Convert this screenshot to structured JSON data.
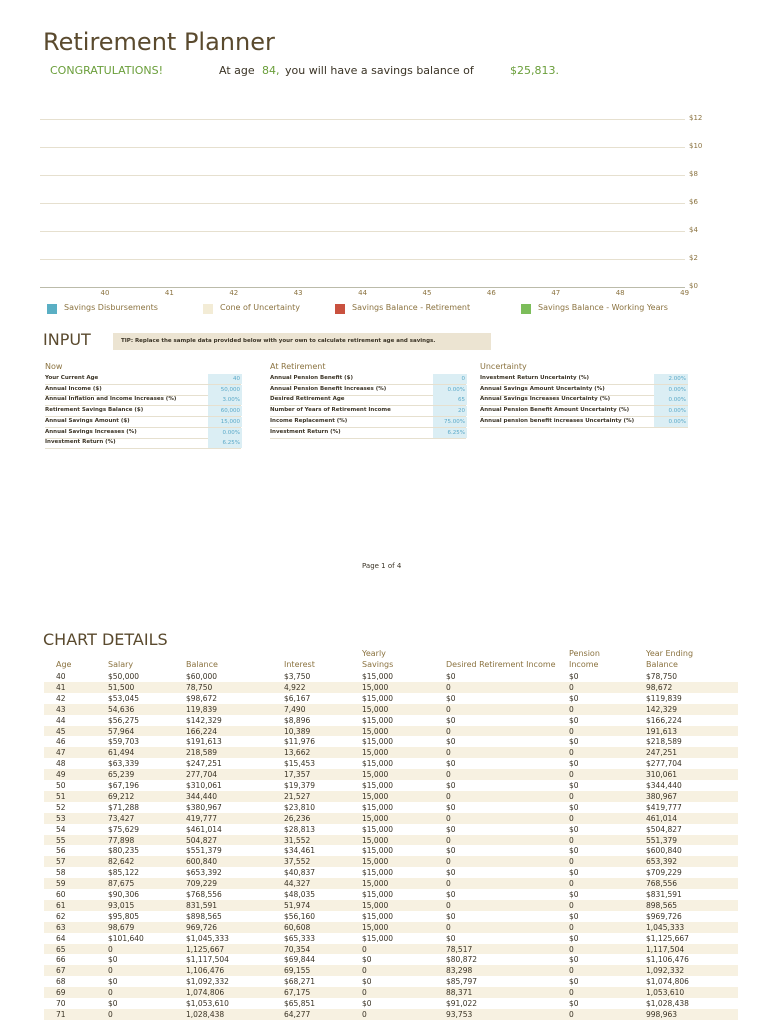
{
  "header": {
    "title": "Retirement Planner"
  },
  "summary": {
    "congrats": "CONGRATULATIONS!",
    "prefix": "At age",
    "age": "84,",
    "middle": "you will have a savings balance of",
    "balance": "$25,813."
  },
  "chart": {
    "yticks": [
      "$12",
      "$10",
      "$8",
      "$6",
      "$4",
      "$2",
      "$0"
    ],
    "xticks": [
      "40",
      "41",
      "42",
      "43",
      "44",
      "45",
      "46",
      "47",
      "48",
      "49"
    ],
    "legend": [
      {
        "label": "Savings Disbursements",
        "color": "#5aafc4"
      },
      {
        "label": "Cone of Uncertainty",
        "color": "#f3ecd6"
      },
      {
        "label": "Savings Balance - Retirement",
        "color": "#c9513f"
      },
      {
        "label": "Savings Balance - Working Years",
        "color": "#7cbd5a"
      }
    ]
  },
  "input": {
    "heading": "INPUT",
    "tip": "TIP: Replace the sample data provided below with your own to calculate retirement age and savings.",
    "groups": [
      {
        "title": "Now",
        "rows": [
          [
            "Your Current Age",
            "40"
          ],
          [
            "Annual Income ($)",
            "50,000"
          ],
          [
            "Annual Inflation and Income Increases (%)",
            "3.00%"
          ],
          [
            "Retirement Savings Balance ($)",
            "60,000"
          ],
          [
            "Annual Savings Amount ($)",
            "15,000"
          ],
          [
            "Annual Savings Increases (%)",
            "0.00%"
          ],
          [
            "Investment Return (%)",
            "6.25%"
          ]
        ]
      },
      {
        "title": "At Retirement",
        "rows": [
          [
            "Annual Pension Benefit ($)",
            "0"
          ],
          [
            "Annual Pension Benefit Increases (%)",
            "0.00%"
          ],
          [
            "Desired Retirement Age",
            "65"
          ],
          [
            "Number of Years of Retirement Income",
            "20"
          ],
          [
            "Income Replacement (%)",
            "75.00%"
          ],
          [
            "Investment Return (%)",
            "6.25%"
          ]
        ]
      },
      {
        "title": "Uncertainty",
        "rows": [
          [
            "Investment Return Uncertainty (%)",
            "2.00%"
          ],
          [
            "Annual Savings Amount Uncertainty (%)",
            "0.00%"
          ],
          [
            "Annual Savings Increases Uncertainty (%)",
            "0.00%"
          ],
          [
            "Annual Pension Benefit Amount Uncertainty (%)",
            "0.00%"
          ],
          [
            "Annual pension benefit increases Uncertainty (%)",
            "0.00%"
          ]
        ]
      }
    ]
  },
  "footer": {
    "page": "Page 1 of 4"
  },
  "details": {
    "heading": "CHART DETAILS",
    "columns": [
      "Age",
      "Salary",
      "Balance",
      "Interest",
      "Yearly Savings",
      "Desired Retirement Income",
      "Pension Income",
      "Year Ending Balance"
    ],
    "rows": [
      [
        "40",
        "$50,000",
        "$60,000",
        "$3,750",
        "$15,000",
        "$0",
        "$0",
        "$78,750"
      ],
      [
        "41",
        "51,500",
        "78,750",
        "4,922",
        "15,000",
        "0",
        "0",
        "98,672"
      ],
      [
        "42",
        "$53,045",
        "$98,672",
        "$6,167",
        "$15,000",
        "$0",
        "$0",
        "$119,839"
      ],
      [
        "43",
        "54,636",
        "119,839",
        "7,490",
        "15,000",
        "0",
        "0",
        "142,329"
      ],
      [
        "44",
        "$56,275",
        "$142,329",
        "$8,896",
        "$15,000",
        "$0",
        "$0",
        "$166,224"
      ],
      [
        "45",
        "57,964",
        "166,224",
        "10,389",
        "15,000",
        "0",
        "0",
        "191,613"
      ],
      [
        "46",
        "$59,703",
        "$191,613",
        "$11,976",
        "$15,000",
        "$0",
        "$0",
        "$218,589"
      ],
      [
        "47",
        "61,494",
        "218,589",
        "13,662",
        "15,000",
        "0",
        "0",
        "247,251"
      ],
      [
        "48",
        "$63,339",
        "$247,251",
        "$15,453",
        "$15,000",
        "$0",
        "$0",
        "$277,704"
      ],
      [
        "49",
        "65,239",
        "277,704",
        "17,357",
        "15,000",
        "0",
        "0",
        "310,061"
      ],
      [
        "50",
        "$67,196",
        "$310,061",
        "$19,379",
        "$15,000",
        "$0",
        "$0",
        "$344,440"
      ],
      [
        "51",
        "69,212",
        "344,440",
        "21,527",
        "15,000",
        "0",
        "0",
        "380,967"
      ],
      [
        "52",
        "$71,288",
        "$380,967",
        "$23,810",
        "$15,000",
        "$0",
        "$0",
        "$419,777"
      ],
      [
        "53",
        "73,427",
        "419,777",
        "26,236",
        "15,000",
        "0",
        "0",
        "461,014"
      ],
      [
        "54",
        "$75,629",
        "$461,014",
        "$28,813",
        "$15,000",
        "$0",
        "$0",
        "$504,827"
      ],
      [
        "55",
        "77,898",
        "504,827",
        "31,552",
        "15,000",
        "0",
        "0",
        "551,379"
      ],
      [
        "56",
        "$80,235",
        "$551,379",
        "$34,461",
        "$15,000",
        "$0",
        "$0",
        "$600,840"
      ],
      [
        "57",
        "82,642",
        "600,840",
        "37,552",
        "15,000",
        "0",
        "0",
        "653,392"
      ],
      [
        "58",
        "$85,122",
        "$653,392",
        "$40,837",
        "$15,000",
        "$0",
        "$0",
        "$709,229"
      ],
      [
        "59",
        "87,675",
        "709,229",
        "44,327",
        "15,000",
        "0",
        "0",
        "768,556"
      ],
      [
        "60",
        "$90,306",
        "$768,556",
        "$48,035",
        "$15,000",
        "$0",
        "$0",
        "$831,591"
      ],
      [
        "61",
        "93,015",
        "831,591",
        "51,974",
        "15,000",
        "0",
        "0",
        "898,565"
      ],
      [
        "62",
        "$95,805",
        "$898,565",
        "$56,160",
        "$15,000",
        "$0",
        "$0",
        "$969,726"
      ],
      [
        "63",
        "98,679",
        "969,726",
        "60,608",
        "15,000",
        "0",
        "0",
        "1,045,333"
      ],
      [
        "64",
        "$101,640",
        "$1,045,333",
        "$65,333",
        "$15,000",
        "$0",
        "$0",
        "$1,125,667"
      ],
      [
        "65",
        "0",
        "1,125,667",
        "70,354",
        "0",
        "78,517",
        "0",
        "1,117,504"
      ],
      [
        "66",
        "$0",
        "$1,117,504",
        "$69,844",
        "$0",
        "$80,872",
        "$0",
        "$1,106,476"
      ],
      [
        "67",
        "0",
        "1,106,476",
        "69,155",
        "0",
        "83,298",
        "0",
        "1,092,332"
      ],
      [
        "68",
        "$0",
        "$1,092,332",
        "$68,271",
        "$0",
        "$85,797",
        "$0",
        "$1,074,806"
      ],
      [
        "69",
        "0",
        "1,074,806",
        "67,175",
        "0",
        "88,371",
        "0",
        "1,053,610"
      ],
      [
        "70",
        "$0",
        "$1,053,610",
        "$65,851",
        "$0",
        "$91,022",
        "$0",
        "$1,028,438"
      ],
      [
        "71",
        "0",
        "1,028,438",
        "64,277",
        "0",
        "93,753",
        "0",
        "998,963"
      ]
    ]
  }
}
